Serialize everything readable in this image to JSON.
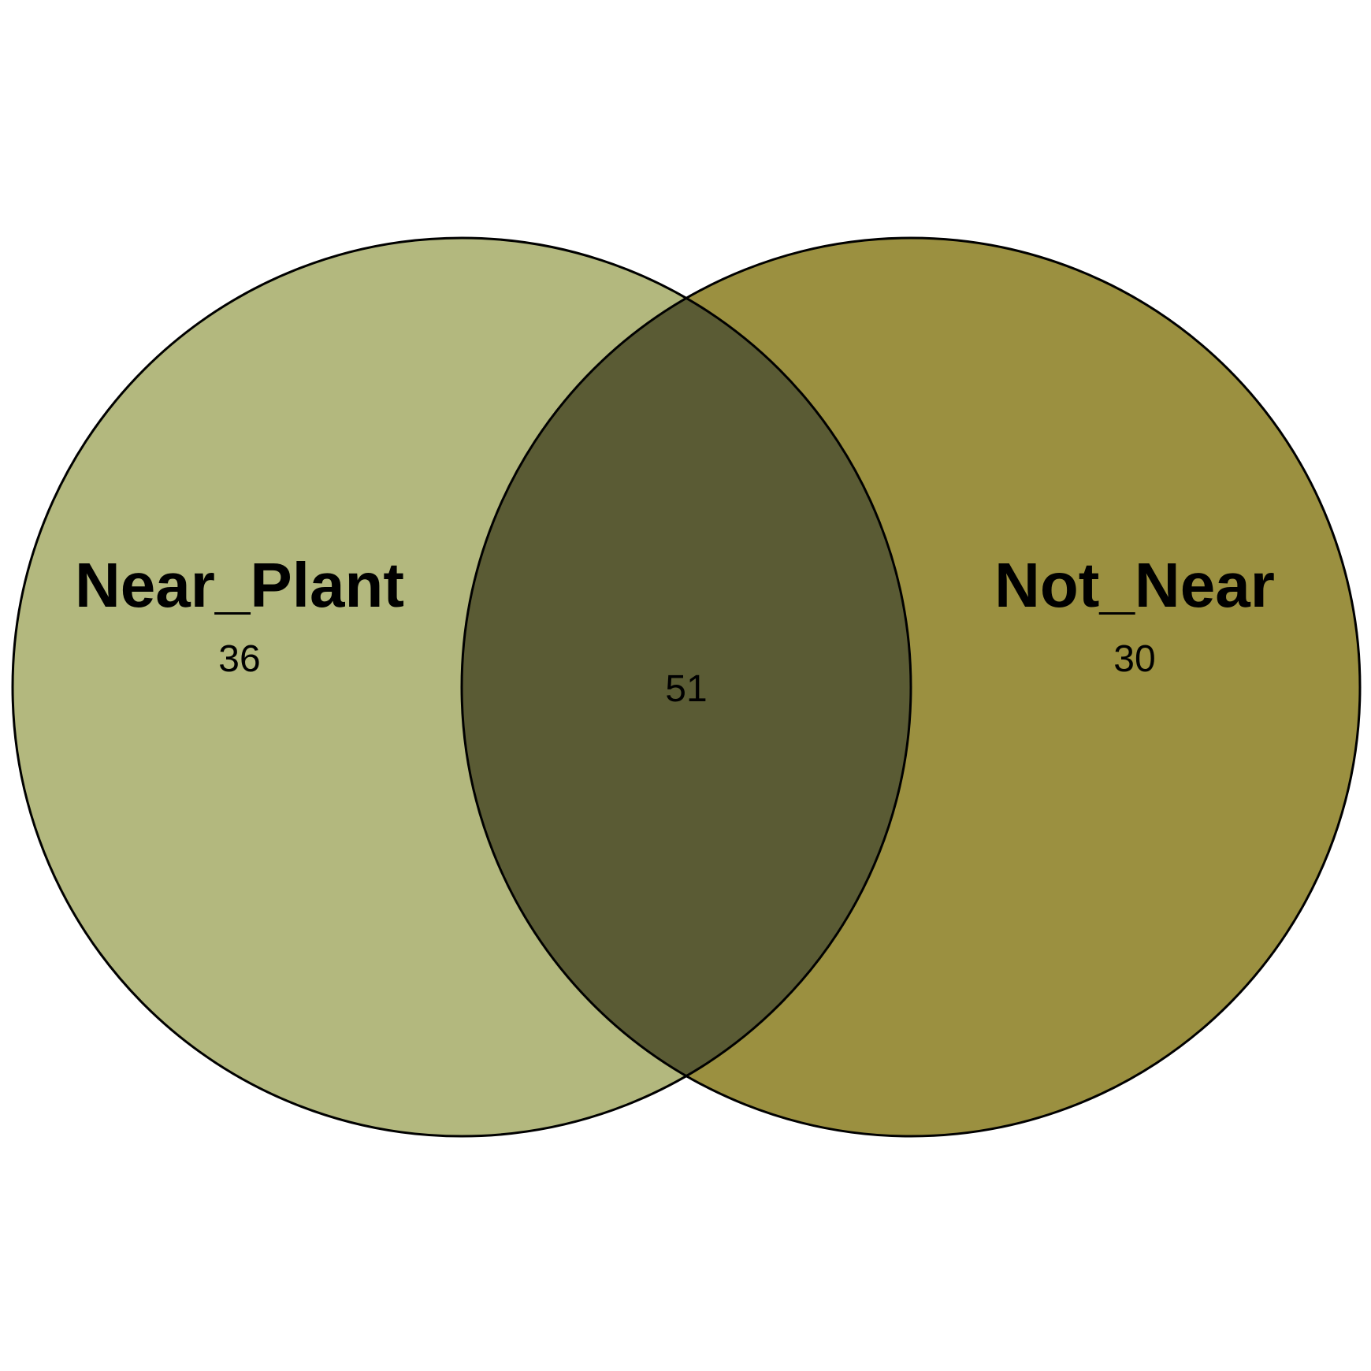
{
  "chart_data": {
    "type": "venn",
    "sets": [
      {
        "name": "Near_Plant",
        "only_count": "36",
        "color": "#b3b87e"
      },
      {
        "name": "Not_Near",
        "only_count": "30",
        "color": "#9b9040"
      }
    ],
    "intersection": {
      "count": "51",
      "color": "#5a5b34"
    },
    "outline_color": "#000000"
  }
}
